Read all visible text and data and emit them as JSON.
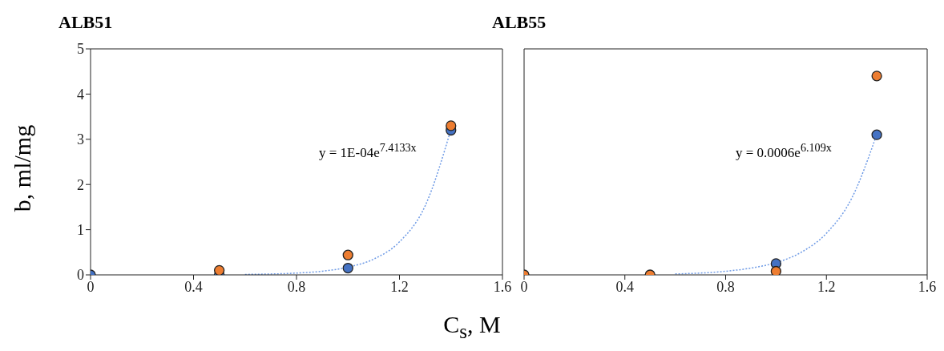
{
  "chart_data": [
    {
      "type": "scatter",
      "title": "ALB51",
      "xlabel": "C$_{s}$, M",
      "ylabel": "b, ml/mg",
      "xlim": [
        0,
        1.6
      ],
      "xticks": [
        0,
        0.4,
        0.8,
        1.2,
        1.6
      ],
      "ylim": [
        0,
        5
      ],
      "yticks": [
        0,
        1,
        2,
        3,
        4,
        5
      ],
      "annotations": [
        "y = 1E-04e$^{7.4133x}$"
      ],
      "series": [
        {
          "type": "line",
          "color": "#6f9be6",
          "line_style": "dotted",
          "marker": "none",
          "x": [
            0.6,
            0.8,
            0.9,
            1.0,
            1.1,
            1.2,
            1.3,
            1.4
          ],
          "values": [
            0.01,
            0.04,
            0.08,
            0.17,
            0.35,
            0.73,
            1.53,
            3.22
          ]
        },
        {
          "color": "#4472c4",
          "marker": "circle",
          "x": [
            0,
            0.5,
            1.0,
            1.4
          ],
          "values": [
            0,
            0,
            0.15,
            3.2
          ]
        },
        {
          "color": "#ed7d31",
          "marker": "circle",
          "x": [
            0.5,
            1.0,
            1.4
          ],
          "values": [
            0.1,
            0.44,
            3.3
          ]
        }
      ]
    },
    {
      "type": "scatter",
      "title": "ALB55",
      "xlim": [
        0,
        1.6
      ],
      "xticks": [
        0,
        0.4,
        0.8,
        1.2,
        1.6
      ],
      "ylim": [
        0,
        5
      ],
      "yticks": [
        0,
        1,
        2,
        3,
        4,
        5
      ],
      "tick_labels": "x",
      "annotations": [
        "y = 0.0006e$^{6.109x}$"
      ],
      "series": [
        {
          "type": "line",
          "color": "#6f9be6",
          "line_style": "dotted",
          "marker": "none",
          "x": [
            0.6,
            0.8,
            0.9,
            1.0,
            1.1,
            1.2,
            1.3,
            1.4
          ],
          "values": [
            0.02,
            0.08,
            0.15,
            0.27,
            0.5,
            0.92,
            1.69,
            3.11
          ]
        },
        {
          "color": "#4472c4",
          "marker": "circle",
          "x": [
            1.0,
            1.4
          ],
          "values": [
            0.25,
            3.1
          ]
        },
        {
          "color": "#ed7d31",
          "marker": "circle",
          "x": [
            0,
            0.5,
            1.0,
            1.4
          ],
          "values": [
            0,
            0,
            0.08,
            4.4
          ]
        }
      ]
    }
  ]
}
